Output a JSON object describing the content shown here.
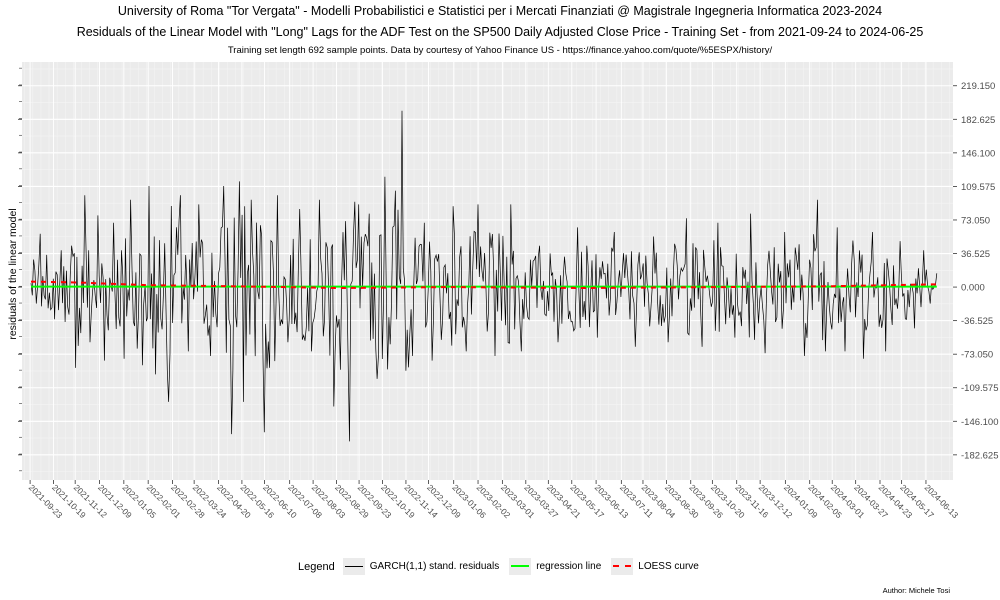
{
  "chart_data": {
    "type": "line",
    "title": "University of Roma \"Tor Vergata\" - Modelli Probabilistici e Statistici per i Mercati Finanziati @ Magistrale Ingegneria Informatica 2023-2024",
    "subtitle": "Residuals of the Linear Model with \"Long\" Lags for the ADF Test on the SP500 Daily Adjusted Close Price - Training Set - from 2021-09-24 to 2024-06-25",
    "caption": "Training set length 692 sample points. Data by courtesy of Yahoo Finance US - https://finance.yahoo.com/quote/%5ESPX/history/",
    "xlabel": "",
    "ylabel": "residuals of the linear model",
    "ylim": [
      -210,
      245
    ],
    "xlim": [
      "2021-09-14",
      "2024-07-13"
    ],
    "grid": true,
    "y_ticks": [
      "-182.625",
      "-146.100",
      "-109.575",
      "-73.050",
      "-36.525",
      "0.000",
      "36.525",
      "73.050",
      "109.575",
      "146.100",
      "182.625",
      "219.150"
    ],
    "x_ticks": [
      "2021-09-23",
      "2021-10-19",
      "2021-11-12",
      "2021-12-09",
      "2022-01-05",
      "2022-02-01",
      "2022-02-28",
      "2022-03-24",
      "2022-04-20",
      "2022-05-16",
      "2022-06-10",
      "2022-07-08",
      "2022-08-03",
      "2022-08-29",
      "2022-09-23",
      "2022-10-19",
      "2022-11-14",
      "2022-12-09",
      "2023-01-06",
      "2023-02-02",
      "2023-03-01",
      "2023-03-27",
      "2023-04-21",
      "2023-05-17",
      "2023-06-13",
      "2023-07-11",
      "2023-08-04",
      "2023-08-30",
      "2023-09-26",
      "2023-10-20",
      "2023-11-16",
      "2023-12-12",
      "2024-01-09",
      "2024-02-05",
      "2024-03-01",
      "2024-03-27",
      "2024-04-23",
      "2024-05-17",
      "2024-06-13"
    ],
    "series": [
      {
        "name": "GARCH(1,1) stand. residuals",
        "color": "#000000",
        "x_start": "2021-09-24",
        "x_end": "2024-06-25",
        "n": 692,
        "peaks": [
          {
            "x": "2021-09-27",
            "y": 30
          },
          {
            "x": "2021-09-30",
            "y": -18
          },
          {
            "x": "2021-10-04",
            "y": 58
          },
          {
            "x": "2021-10-07",
            "y": 12
          },
          {
            "x": "2021-10-11",
            "y": 35
          },
          {
            "x": "2021-10-20",
            "y": -35
          },
          {
            "x": "2021-10-27",
            "y": 40
          },
          {
            "x": "2021-11-01",
            "y": -38
          },
          {
            "x": "2021-11-08",
            "y": 45
          },
          {
            "x": "2021-11-12",
            "y": -88
          },
          {
            "x": "2021-11-22",
            "y": 100
          },
          {
            "x": "2021-11-29",
            "y": -60
          },
          {
            "x": "2021-12-07",
            "y": 78
          },
          {
            "x": "2021-12-15",
            "y": -80
          },
          {
            "x": "2021-12-24",
            "y": 70
          },
          {
            "x": "2022-01-05",
            "y": -78
          },
          {
            "x": "2022-01-13",
            "y": 95
          },
          {
            "x": "2022-01-25",
            "y": -85
          },
          {
            "x": "2022-02-02",
            "y": 110
          },
          {
            "x": "2022-02-09",
            "y": -95
          },
          {
            "x": "2022-02-24",
            "y": -125
          },
          {
            "x": "2022-03-09",
            "y": 100
          },
          {
            "x": "2022-03-18",
            "y": -70
          },
          {
            "x": "2022-03-29",
            "y": 90
          },
          {
            "x": "2022-04-11",
            "y": -75
          },
          {
            "x": "2022-04-26",
            "y": 110
          },
          {
            "x": "2022-05-05",
            "y": -160
          },
          {
            "x": "2022-05-13",
            "y": 115
          },
          {
            "x": "2022-05-18",
            "y": -125
          },
          {
            "x": "2022-05-27",
            "y": 95
          },
          {
            "x": "2022-06-10",
            "y": -158
          },
          {
            "x": "2022-06-24",
            "y": 100
          },
          {
            "x": "2022-07-06",
            "y": -60
          },
          {
            "x": "2022-07-19",
            "y": 85
          },
          {
            "x": "2022-08-01",
            "y": -70
          },
          {
            "x": "2022-08-10",
            "y": 95
          },
          {
            "x": "2022-08-26",
            "y": -130
          },
          {
            "x": "2022-09-02",
            "y": -90
          },
          {
            "x": "2022-09-13",
            "y": -168
          },
          {
            "x": "2022-09-23",
            "y": 90
          },
          {
            "x": "2022-10-04",
            "y": 80
          },
          {
            "x": "2022-10-13",
            "y": -100
          },
          {
            "x": "2022-10-21",
            "y": 120
          },
          {
            "x": "2022-11-10",
            "y": 192
          },
          {
            "x": "2022-11-21",
            "y": -75
          },
          {
            "x": "2022-12-05",
            "y": 70
          },
          {
            "x": "2022-12-13",
            "y": -80
          },
          {
            "x": "2023-01-06",
            "y": 88
          },
          {
            "x": "2023-01-20",
            "y": -70
          },
          {
            "x": "2023-02-02",
            "y": 90
          },
          {
            "x": "2023-02-21",
            "y": -75
          },
          {
            "x": "2023-03-10",
            "y": 90
          },
          {
            "x": "2023-03-22",
            "y": -70
          },
          {
            "x": "2023-04-12",
            "y": 45
          },
          {
            "x": "2023-05-01",
            "y": -60
          },
          {
            "x": "2023-05-24",
            "y": 65
          },
          {
            "x": "2023-06-15",
            "y": -55
          },
          {
            "x": "2023-07-03",
            "y": 60
          },
          {
            "x": "2023-07-26",
            "y": -65
          },
          {
            "x": "2023-08-16",
            "y": 55
          },
          {
            "x": "2023-09-01",
            "y": -60
          },
          {
            "x": "2023-09-21",
            "y": 75
          },
          {
            "x": "2023-10-09",
            "y": -65
          },
          {
            "x": "2023-10-26",
            "y": 70
          },
          {
            "x": "2023-11-14",
            "y": -55
          },
          {
            "x": "2023-12-01",
            "y": 80
          },
          {
            "x": "2023-12-18",
            "y": -72
          },
          {
            "x": "2024-01-08",
            "y": 60
          },
          {
            "x": "2024-01-30",
            "y": -75
          },
          {
            "x": "2024-02-13",
            "y": 95
          },
          {
            "x": "2024-02-22",
            "y": -70
          },
          {
            "x": "2024-03-06",
            "y": 65
          },
          {
            "x": "2024-03-15",
            "y": -70
          },
          {
            "x": "2024-04-04",
            "y": -78
          },
          {
            "x": "2024-04-15",
            "y": 60
          },
          {
            "x": "2024-04-30",
            "y": -70
          },
          {
            "x": "2024-05-15",
            "y": 50
          },
          {
            "x": "2024-05-31",
            "y": -45
          },
          {
            "x": "2024-06-10",
            "y": 40
          },
          {
            "x": "2024-06-18",
            "y": -18
          },
          {
            "x": "2024-06-25",
            "y": 15
          }
        ]
      },
      {
        "name": "regression line",
        "color": "#00ff00",
        "x": [
          "2021-09-24",
          "2024-06-25"
        ],
        "y": [
          0.5,
          0.5
        ]
      },
      {
        "name": "LOESS curve",
        "color": "#ff0000",
        "x": [
          "2021-09-24",
          "2021-11-15",
          "2022-02-01",
          "2022-05-01",
          "2022-09-01",
          "2023-01-01",
          "2023-06-01",
          "2023-11-01",
          "2024-03-01",
          "2024-06-25"
        ],
        "y": [
          6,
          5,
          2,
          1,
          -1,
          0,
          -1,
          0,
          1,
          3
        ]
      }
    ],
    "legend": {
      "title": "Legend",
      "position": "bottom",
      "items": [
        {
          "label": "GARCH(1,1) stand. residuals",
          "color": "#000000",
          "style": "solid"
        },
        {
          "label": "regression line",
          "color": "#00ff00",
          "style": "solid"
        },
        {
          "label": "LOESS curve",
          "color": "#ff0000",
          "style": "dashed"
        }
      ]
    },
    "author": "Author: Michele Tosi"
  }
}
